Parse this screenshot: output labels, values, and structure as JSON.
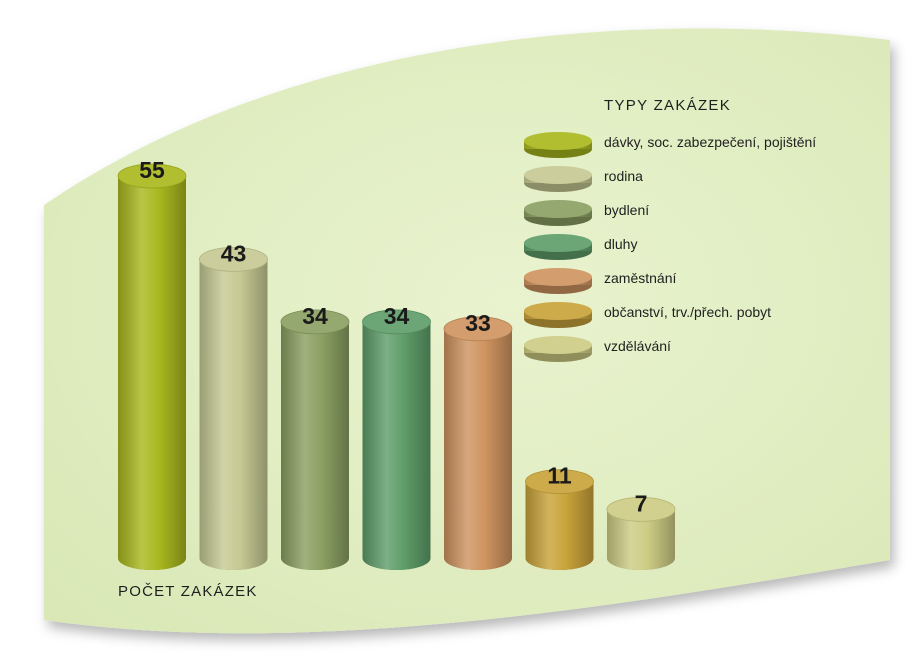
{
  "chart_data": {
    "type": "bar",
    "legend_title": "TYPY ZAKÁZEK",
    "ylabel": "POČET ZAKÁZEK",
    "categories": [
      "dávky, soc. zabezpečení, pojištění",
      "rodina",
      "bydlení",
      "dluhy",
      "zaměstnání",
      "občanství, trv./přech. pobyt",
      "vzdělávání"
    ],
    "values": [
      55,
      43,
      34,
      34,
      33,
      11,
      7
    ],
    "value_labels": [
      "55",
      "43",
      "34",
      "34",
      "33",
      "11",
      "7"
    ],
    "colors": [
      "#a9b81e",
      "#c6c993",
      "#8ba062",
      "#5f9e6a",
      "#cf9460",
      "#c9a33a",
      "#cdcc84"
    ],
    "legend_placement": "top-right",
    "grid": false,
    "bar_style": "3d-cylinder",
    "background_color": "#e3efc4"
  }
}
